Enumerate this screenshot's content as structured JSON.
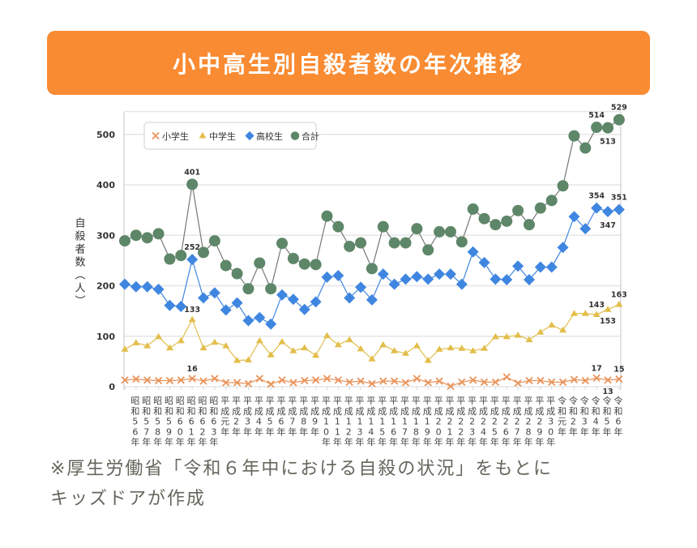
{
  "header": {
    "title": "小中高生別自殺者数の年次推移"
  },
  "footnote": {
    "line1": "※厚生労働省「令和６年中における自殺の状況」をもとに",
    "line2": "キッズドアが作成"
  },
  "colors": {
    "header": "#F98B32",
    "elementary": "#E8935A",
    "junior_high": "#E2BE4A",
    "high_school": "#3F86E0",
    "total": "#5E8668"
  },
  "chart_data": {
    "type": "line",
    "ylabel": "自殺者数（人）",
    "ylim": [
      0,
      550
    ],
    "yticks": [
      0,
      100,
      200,
      300,
      400,
      500
    ],
    "grid": true,
    "legend_position": "top-left",
    "categories": [
      "",
      "昭和56年",
      "昭和57年",
      "昭和58年",
      "昭和59年",
      "昭和60年",
      "昭和61年",
      "昭和62年",
      "昭和63年",
      "平成元年",
      "平成2年",
      "平成3年",
      "平成4年",
      "平成5年",
      "平成6年",
      "平成7年",
      "平成8年",
      "平成9年",
      "平成10年",
      "平成11年",
      "平成12年",
      "平成13年",
      "平成14年",
      "平成15年",
      "平成16年",
      "平成17年",
      "平成18年",
      "平成19年",
      "平成20年",
      "平成21年",
      "平成22年",
      "平成23年",
      "平成24年",
      "平成25年",
      "平成26年",
      "平成27年",
      "平成28年",
      "平成29年",
      "平成30年",
      "令和元年",
      "令和2年",
      "令和3年",
      "令和4年",
      "令和5年",
      "令和6年"
    ],
    "series": [
      {
        "name": "小学生",
        "marker": "x",
        "color": "#E8935A",
        "values": [
          13,
          15,
          13,
          12,
          12,
          13,
          16,
          11,
          16,
          8,
          8,
          6,
          16,
          5,
          13,
          8,
          12,
          13,
          16,
          13,
          9,
          11,
          6,
          11,
          11,
          8,
          16,
          8,
          11,
          1,
          9,
          13,
          9,
          9,
          19,
          7,
          12,
          12,
          9,
          9,
          14,
          12,
          17,
          13,
          15
        ],
        "labels": {
          "6": "16",
          "42": "17",
          "43": "13",
          "44": "15"
        }
      },
      {
        "name": "中学生",
        "marker": "triangle",
        "color": "#E2BE4A",
        "values": [
          74,
          87,
          81,
          99,
          77,
          91,
          133,
          77,
          88,
          81,
          52,
          53,
          91,
          63,
          89,
          71,
          77,
          62,
          101,
          83,
          93,
          75,
          55,
          83,
          71,
          66,
          81,
          52,
          74,
          77,
          76,
          71,
          76,
          99,
          99,
          102,
          93,
          108,
          122,
          112,
          145,
          145,
          143,
          153,
          163
        ],
        "labels": {
          "6": "133",
          "42": "143",
          "43": "153",
          "44": "163"
        }
      },
      {
        "name": "高校生",
        "marker": "diamond",
        "color": "#3F86E0",
        "values": [
          203,
          198,
          198,
          193,
          161,
          159,
          252,
          176,
          186,
          152,
          166,
          131,
          137,
          124,
          182,
          173,
          153,
          168,
          217,
          220,
          176,
          197,
          172,
          223,
          203,
          213,
          218,
          213,
          223,
          223,
          203,
          267,
          246,
          213,
          212,
          239,
          212,
          237,
          237,
          276,
          337,
          313,
          354,
          347,
          351
        ],
        "labels": {
          "6": "252",
          "42": "354",
          "43": "347",
          "44": "351"
        }
      },
      {
        "name": "合計",
        "marker": "circle",
        "color": "#5E8668",
        "values": [
          289,
          300,
          295,
          303,
          253,
          260,
          401,
          266,
          289,
          240,
          224,
          194,
          245,
          194,
          284,
          254,
          243,
          242,
          338,
          317,
          278,
          285,
          234,
          317,
          285,
          285,
          313,
          271,
          307,
          307,
          287,
          352,
          333,
          321,
          328,
          349,
          321,
          354,
          369,
          398,
          497,
          473,
          514,
          513,
          529
        ],
        "labels": {
          "6": "401",
          "42": "514",
          "43": "513",
          "44": "529"
        }
      }
    ]
  }
}
